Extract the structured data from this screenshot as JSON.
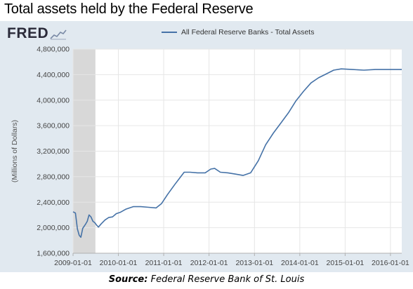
{
  "page_title": "Total assets held by the Federal Reserve",
  "logo": {
    "text": "FRED",
    "icon": "fred-chart-icon"
  },
  "source": {
    "prefix": "Source:",
    "text": "Federal Reserve Bank of St. Louis"
  },
  "colors": {
    "series": "#4572a7",
    "panel_bg": "#e1e9f0",
    "recession_shade": "#d8d8d8",
    "grid": "#e6e6e6"
  },
  "chart_data": {
    "type": "line",
    "title": "",
    "xlabel": "",
    "ylabel": "(Millions of Dollars)",
    "legend": "top-center",
    "grid": true,
    "xlim": [
      "2009-01-01",
      "2016-04-01"
    ],
    "ylim": [
      1600000,
      4800000
    ],
    "x_ticks": [
      "2009-01-01",
      "2010-01-01",
      "2011-01-01",
      "2012-01-01",
      "2013-01-01",
      "2014-01-01",
      "2015-01-01",
      "2016-01-01"
    ],
    "y_ticks": [
      "1,600,000",
      "2,000,000",
      "2,400,000",
      "2,800,000",
      "3,200,000",
      "3,600,000",
      "4,000,000",
      "4,400,000",
      "4,800,000"
    ],
    "shaded_periods": [
      {
        "label": "recession",
        "start": "2009-01-01",
        "end": "2009-06-30"
      }
    ],
    "series": [
      {
        "name": "All Federal Reserve Banks - Total Assets",
        "points": [
          [
            "2009-01-01",
            2250000
          ],
          [
            "2009-01-20",
            2230000
          ],
          [
            "2009-02-05",
            1980000
          ],
          [
            "2009-02-20",
            1880000
          ],
          [
            "2009-03-05",
            1850000
          ],
          [
            "2009-03-20",
            1990000
          ],
          [
            "2009-04-10",
            2050000
          ],
          [
            "2009-04-25",
            2100000
          ],
          [
            "2009-05-10",
            2200000
          ],
          [
            "2009-05-25",
            2170000
          ],
          [
            "2009-06-10",
            2100000
          ],
          [
            "2009-06-25",
            2080000
          ],
          [
            "2009-07-10",
            2040000
          ],
          [
            "2009-07-25",
            2010000
          ],
          [
            "2009-08-15",
            2060000
          ],
          [
            "2009-09-15",
            2120000
          ],
          [
            "2009-10-15",
            2160000
          ],
          [
            "2009-11-15",
            2170000
          ],
          [
            "2009-12-15",
            2220000
          ],
          [
            "2010-01-15",
            2240000
          ],
          [
            "2010-03-01",
            2290000
          ],
          [
            "2010-05-01",
            2330000
          ],
          [
            "2010-07-01",
            2330000
          ],
          [
            "2010-09-01",
            2320000
          ],
          [
            "2010-11-01",
            2310000
          ],
          [
            "2010-12-15",
            2380000
          ],
          [
            "2011-02-01",
            2520000
          ],
          [
            "2011-04-01",
            2680000
          ],
          [
            "2011-06-15",
            2870000
          ],
          [
            "2011-08-01",
            2870000
          ],
          [
            "2011-10-01",
            2860000
          ],
          [
            "2011-12-01",
            2860000
          ],
          [
            "2012-01-15",
            2920000
          ],
          [
            "2012-02-15",
            2930000
          ],
          [
            "2012-04-01",
            2870000
          ],
          [
            "2012-06-01",
            2860000
          ],
          [
            "2012-08-01",
            2840000
          ],
          [
            "2012-10-01",
            2820000
          ],
          [
            "2012-12-01",
            2860000
          ],
          [
            "2013-02-01",
            3050000
          ],
          [
            "2013-04-01",
            3300000
          ],
          [
            "2013-06-01",
            3480000
          ],
          [
            "2013-08-01",
            3640000
          ],
          [
            "2013-10-01",
            3800000
          ],
          [
            "2013-12-01",
            3990000
          ],
          [
            "2014-02-01",
            4140000
          ],
          [
            "2014-04-01",
            4270000
          ],
          [
            "2014-06-01",
            4350000
          ],
          [
            "2014-08-01",
            4410000
          ],
          [
            "2014-10-01",
            4470000
          ],
          [
            "2014-12-01",
            4490000
          ],
          [
            "2015-03-01",
            4480000
          ],
          [
            "2015-06-01",
            4470000
          ],
          [
            "2015-09-01",
            4480000
          ],
          [
            "2015-12-01",
            4480000
          ],
          [
            "2016-03-01",
            4480000
          ],
          [
            "2016-04-01",
            4480000
          ]
        ]
      }
    ]
  }
}
